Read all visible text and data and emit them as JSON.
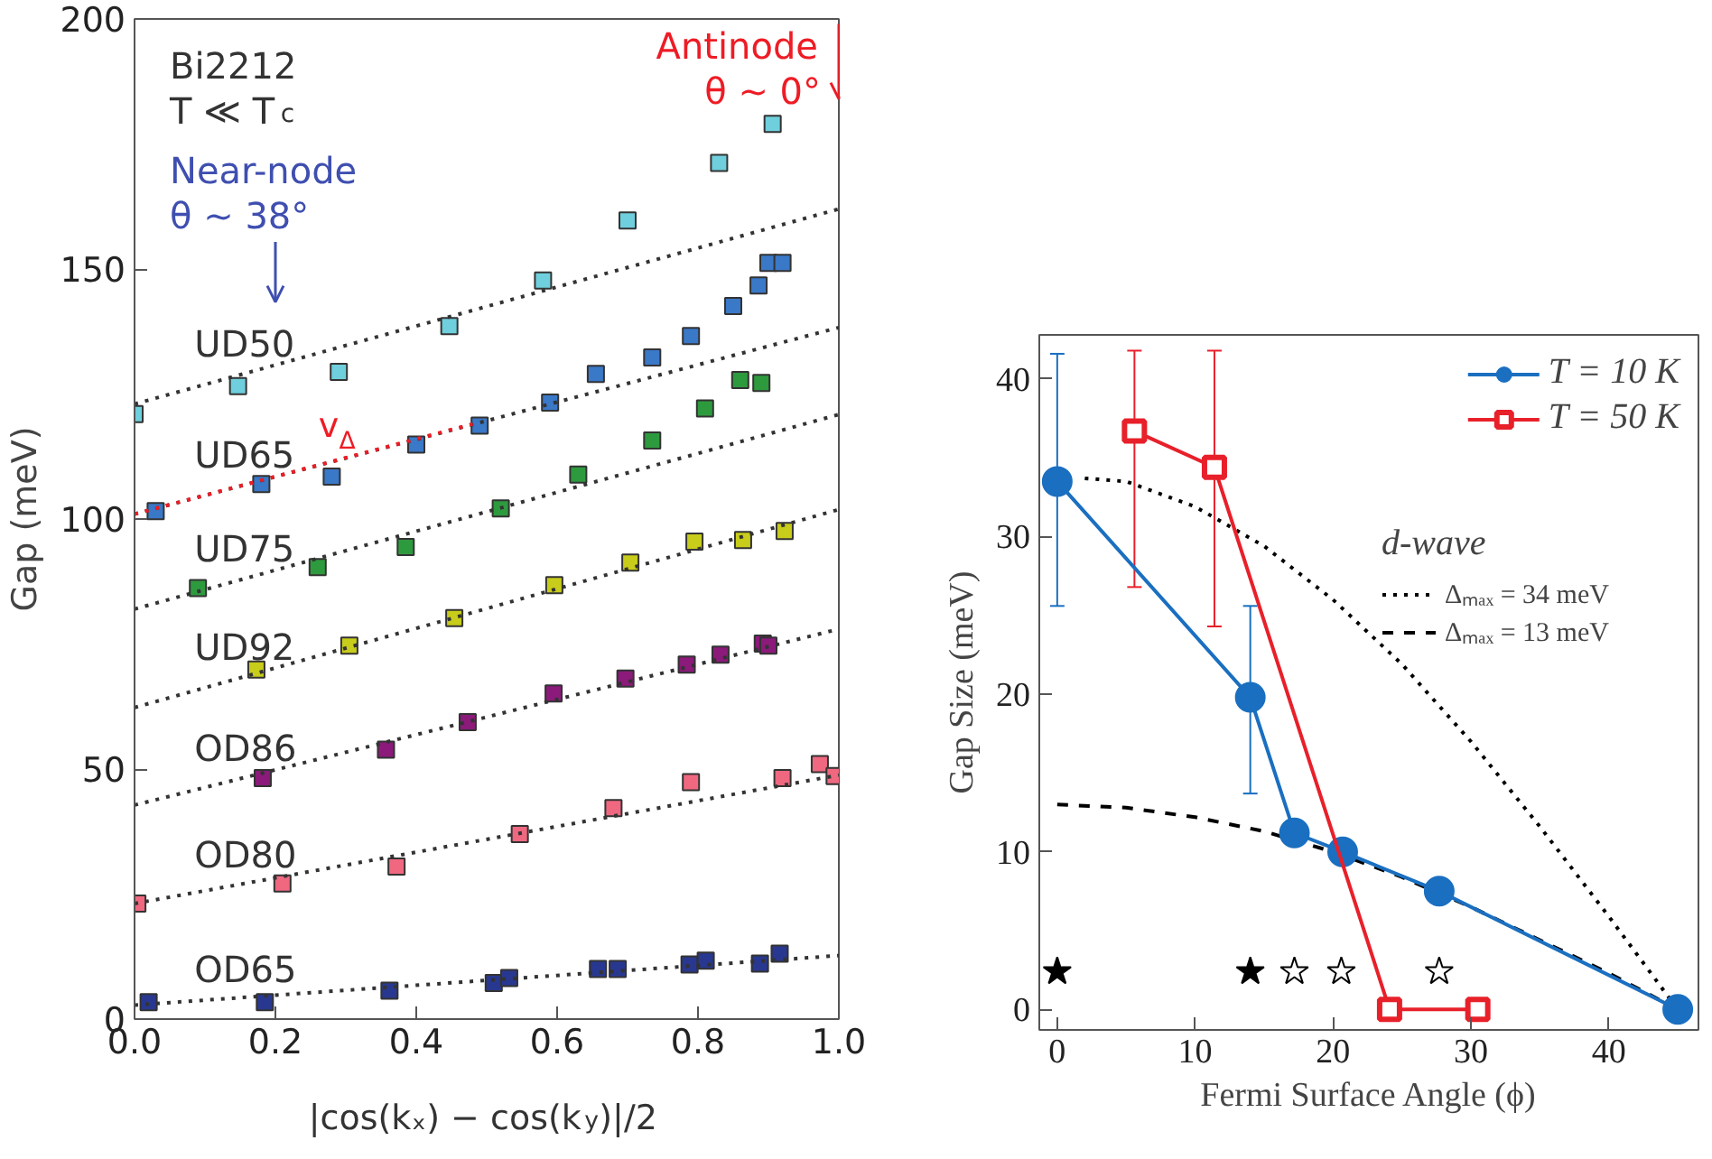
{
  "chart_data": [
    {
      "type": "scatter",
      "xlabel": "|cos(kₓ) − cos(k$_{y}$)|/2",
      "ylabel": "Gap (meV)",
      "xlim": [
        0,
        1
      ],
      "ylim": [
        0,
        200
      ],
      "xticks": [
        {
          "value": 0,
          "label": "0.0"
        },
        {
          "value": 0.2,
          "label": "0.2"
        },
        {
          "value": 0.4,
          "label": "0.4"
        },
        {
          "value": 0.6,
          "label": "0.6"
        },
        {
          "value": 0.8,
          "label": "0.8"
        },
        {
          "value": 1,
          "label": "1.0"
        }
      ],
      "yticks": [
        0,
        50,
        100,
        150,
        200
      ],
      "annotations": [
        "Bi2212",
        "T ≪ T$_{c}$"
      ],
      "ref_lines": [
        {
          "axis": "x",
          "value": 0.2,
          "label": "Near-node\nθ ~ 38°",
          "color": "#3f4fb0"
        },
        {
          "axis": "x",
          "value": 1.0,
          "label": "Antinode\nθ ~ 0°",
          "color": "#ee1c25"
        }
      ],
      "series": [
        {
          "type": "scatter",
          "marker": "square",
          "color": "#6fcfdc",
          "x": [
            0.0,
            0.147,
            0.29,
            0.447,
            0.58,
            0.7,
            0.83,
            0.906
          ],
          "values": [
            121,
            126.6,
            129.4,
            138.6,
            147.7,
            159.7,
            171.2,
            179
          ]
        },
        {
          "type": "line",
          "name": "UD50",
          "color": "#333333",
          "line_style": "dotted",
          "x": [
            0,
            1
          ],
          "values": [
            123,
            162
          ]
        },
        {
          "type": "scatter",
          "marker": "square",
          "color": "#3a78c8",
          "x": [
            0.03,
            0.18,
            0.28,
            0.4,
            0.49,
            0.59,
            0.655,
            0.735,
            0.79,
            0.85,
            0.886,
            0.9,
            0.92
          ],
          "values": [
            101.6,
            107,
            108.5,
            114.9,
            118.7,
            123.3,
            129,
            132.3,
            136.6,
            142.6,
            146.7,
            151.2,
            151.2
          ]
        },
        {
          "type": "line",
          "name": "UD65",
          "color": "#333333",
          "line_style": "dotted",
          "x": [
            0,
            1
          ],
          "values": [
            101,
            138.3
          ]
        },
        {
          "type": "line",
          "name": "v$_{Δ}$",
          "color": "#ee1c25",
          "line_style": "dotted",
          "x": [
            0,
            0.48
          ],
          "values": [
            101,
            119
          ]
        },
        {
          "type": "scatter",
          "marker": "square",
          "color": "#2e9a3e",
          "x": [
            0.09,
            0.26,
            0.385,
            0.52,
            0.63,
            0.735,
            0.81,
            0.86,
            0.89
          ],
          "values": [
            86.2,
            90.4,
            94.4,
            102.1,
            108.9,
            115.7,
            122.1,
            127.8,
            127.2
          ]
        },
        {
          "type": "line",
          "name": "UD75",
          "color": "#333333",
          "line_style": "dotted",
          "x": [
            0,
            1
          ],
          "values": [
            82,
            120.9
          ]
        },
        {
          "type": "scatter",
          "marker": "square",
          "color": "#c8cc1a",
          "x": [
            0.173,
            0.305,
            0.454,
            0.596,
            0.704,
            0.795,
            0.864,
            0.923
          ],
          "values": [
            69.9,
            74.7,
            80.2,
            86.8,
            91.3,
            95.5,
            95.8,
            97.6
          ]
        },
        {
          "type": "line",
          "name": "UD92",
          "color": "#333333",
          "line_style": "dotted",
          "x": [
            0,
            1
          ],
          "values": [
            62.3,
            101.9
          ]
        },
        {
          "type": "scatter",
          "marker": "square",
          "color": "#8b1a7a",
          "x": [
            0.182,
            0.357,
            0.473,
            0.595,
            0.697,
            0.784,
            0.832,
            0.892,
            0.9
          ],
          "values": [
            48.2,
            53.9,
            59.4,
            65.1,
            68.1,
            70.9,
            72.9,
            75.1,
            74.7
          ]
        },
        {
          "type": "line",
          "name": "OD86",
          "color": "#333333",
          "line_style": "dotted",
          "x": [
            0,
            1
          ],
          "values": [
            42.8,
            78
          ]
        },
        {
          "type": "scatter",
          "marker": "square",
          "color": "#f06880",
          "x": [
            0.004,
            0.21,
            0.372,
            0.547,
            0.68,
            0.79,
            0.92,
            0.973,
            0.994
          ],
          "values": [
            23.1,
            27.1,
            30.5,
            37.0,
            42.2,
            47.4,
            48.2,
            51,
            48.6
          ]
        },
        {
          "type": "line",
          "name": "OD80",
          "color": "#333333",
          "line_style": "dotted",
          "x": [
            0,
            1
          ],
          "values": [
            23.1,
            48.8
          ]
        },
        {
          "type": "scatter",
          "marker": "square",
          "color": "#283890",
          "x": [
            0.02,
            0.185,
            0.362,
            0.51,
            0.532,
            0.658,
            0.686,
            0.788,
            0.811,
            0.888,
            0.916
          ],
          "values": [
            3.4,
            3.4,
            5.7,
            7.2,
            8.2,
            10,
            10,
            10.9,
            11.7,
            11.1,
            13.1
          ]
        },
        {
          "type": "line",
          "name": "OD65",
          "color": "#333333",
          "line_style": "dotted",
          "x": [
            0,
            1
          ],
          "values": [
            2.8,
            12.7
          ]
        }
      ]
    },
    {
      "type": "line",
      "xlabel": "Fermi Surface Angle (ϕ)",
      "ylabel": "Gap Size (meV)",
      "xlim": [
        -1.3,
        46.5
      ],
      "ylim": [
        -1.3,
        42.8
      ],
      "xticks": [
        0,
        10,
        20,
        30,
        40
      ],
      "yticks": [
        0,
        10,
        20,
        30,
        40
      ],
      "legend": "top right",
      "legend_title": "d-wave",
      "series": [
        {
          "name": "Δₘₐₓ = 34 meV",
          "color": "#000000",
          "marker": "none",
          "line_style": "dotted",
          "x": [
            2,
            5,
            10,
            15,
            20,
            25,
            30,
            35,
            40,
            45
          ],
          "values": [
            33.7,
            33.5,
            31.9,
            29.4,
            26.0,
            21.9,
            17.0,
            11.6,
            5.9,
            0
          ]
        },
        {
          "name": "Δₘₐₓ = 13 meV",
          "color": "#000000",
          "marker": "none",
          "line_style": "dashed",
          "x": [
            0,
            5,
            10,
            15,
            20,
            25,
            30,
            35,
            40,
            45
          ],
          "values": [
            13.0,
            12.8,
            12.2,
            11.3,
            10.0,
            8.4,
            6.5,
            4.4,
            2.3,
            0
          ]
        },
        {
          "name": "T = 10 K",
          "color": "#1a6fc0",
          "marker": "circle",
          "x": [
            0,
            14,
            17.2,
            20.7,
            27.7,
            45
          ],
          "values": [
            33.5,
            19.8,
            11.2,
            10.0,
            7.5,
            0
          ],
          "errors": [
            [
              25.6,
              41.6
            ],
            [
              13.7,
              25.6
            ],
            null,
            null,
            null,
            null
          ]
        },
        {
          "name": "T = 50 K",
          "color": "#e8202a",
          "marker": "square",
          "x": [
            5.6,
            11.4,
            24.1,
            30.5
          ],
          "values": [
            36.7,
            34.4,
            0,
            0
          ],
          "errors": [
            [
              26.8,
              41.8
            ],
            [
              24.3,
              41.8
            ],
            null,
            null
          ]
        },
        {
          "type": "scatter",
          "color": "#000000",
          "marker": "star",
          "x": [
            0,
            14
          ],
          "values": [
            2.4,
            2.4
          ]
        },
        {
          "type": "scatter",
          "color": "#ffffff",
          "marker": "star",
          "x": [
            17.2,
            20.6,
            27.7
          ],
          "values": [
            2.4,
            2.4,
            2.4
          ]
        }
      ]
    }
  ]
}
